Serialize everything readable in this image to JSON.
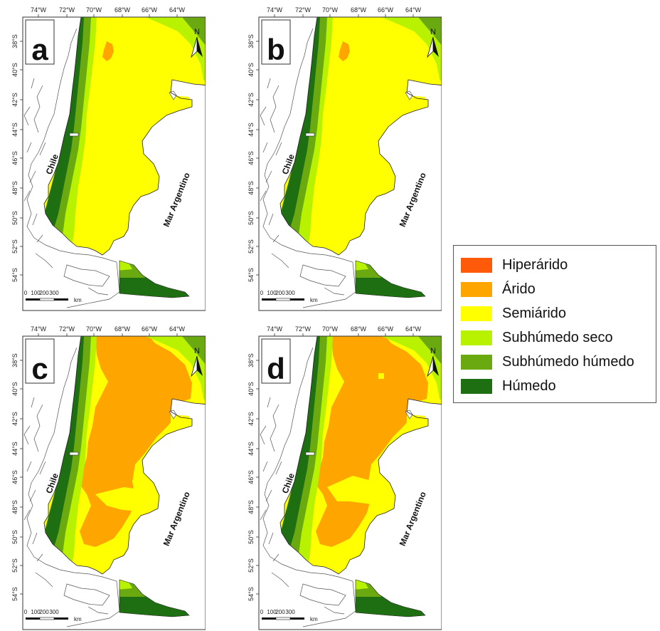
{
  "panels": [
    {
      "letter": "a",
      "variant": "semiarid"
    },
    {
      "letter": "b",
      "variant": "semiarid"
    },
    {
      "letter": "c",
      "variant": "arid"
    },
    {
      "letter": "d",
      "variant": "arid"
    }
  ],
  "map_labels": {
    "longitudes": [
      "74°W",
      "72°W",
      "70°W",
      "68°W",
      "66°W",
      "64°W"
    ],
    "latitudes": [
      "38°S",
      "40°S",
      "42°S",
      "44°S",
      "46°S",
      "48°S",
      "50°S",
      "52°S",
      "54°S"
    ],
    "country": "Chile",
    "sea": "Mar Argentino",
    "north": "N",
    "scale_ticks": [
      "0",
      "100",
      "200",
      "300"
    ],
    "scale_unit": "km"
  },
  "legend": {
    "items": [
      {
        "label": "Hiperárido",
        "color": "#ff5a0a"
      },
      {
        "label": "Árido",
        "color": "#ffa500"
      },
      {
        "label": "Semiárido",
        "color": "#ffff00"
      },
      {
        "label": "Subhúmedo seco",
        "color": "#b8f200"
      },
      {
        "label": "Subhúmedo húmedo",
        "color": "#6aaa10"
      },
      {
        "label": "Húmedo",
        "color": "#1e6e12"
      }
    ]
  }
}
